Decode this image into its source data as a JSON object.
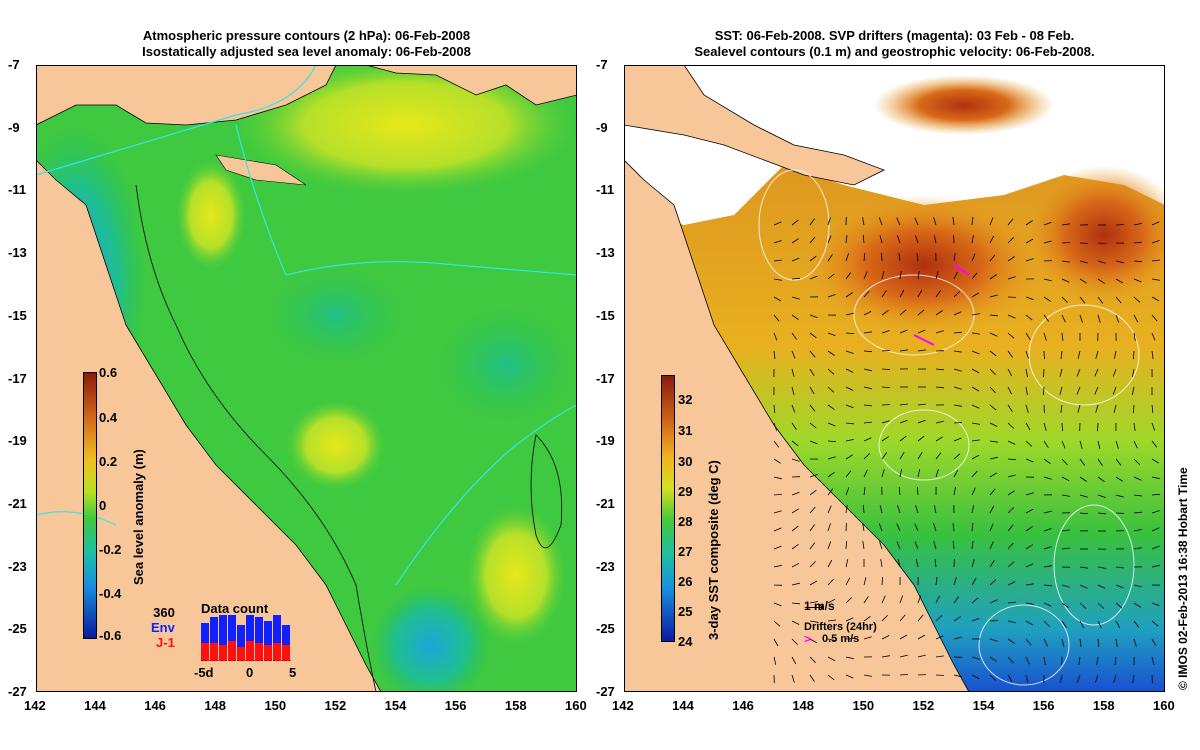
{
  "left_panel": {
    "title_line1": "Atmospheric pressure contours (2 hPa): 06-Feb-2008",
    "title_line2": "Isostatically adjusted sea level anomaly: 06-Feb-2008",
    "colorbar_label": "Sea level anomaly (m)",
    "colorbar_ticks": [
      "0.6",
      "0.4",
      "0.2",
      "0",
      "-0.2",
      "-0.4",
      "-0.6"
    ],
    "data_count": {
      "title": "Data count",
      "legend": [
        "360",
        "Env",
        "J-1"
      ],
      "x_ticks": [
        "-5d",
        "0",
        "5"
      ]
    }
  },
  "right_panel": {
    "title_line1": "SST: 06-Feb-2008. SVP drifters (magenta): 03 Feb - 08 Feb.",
    "title_line2": "Sealevel contours (0.1 m) and geostrophic velocity: 06-Feb-2008.",
    "colorbar_label": "3-day SST composite (deg C)",
    "colorbar_ticks": [
      "32",
      "31",
      "30",
      "29",
      "28",
      "27",
      "26",
      "25",
      "24"
    ],
    "velocity_key": "1 m/s",
    "drifters_label": "Drifters (24hr)",
    "drifters_speed": "0.5 m/s"
  },
  "axes": {
    "lon_ticks": [
      "142",
      "144",
      "146",
      "148",
      "150",
      "152",
      "154",
      "156",
      "158",
      "160"
    ],
    "lat_ticks": [
      "-7",
      "-9",
      "-11",
      "-13",
      "-15",
      "-17",
      "-19",
      "-21",
      "-23",
      "-25",
      "-27"
    ]
  },
  "copyright": "© IMOS 02-Feb-2013 16:38 Hobart Time",
  "colors": {
    "land": "#f7c79a",
    "sla_mid": "#37c93c",
    "sst_mid": "#e8a020"
  }
}
